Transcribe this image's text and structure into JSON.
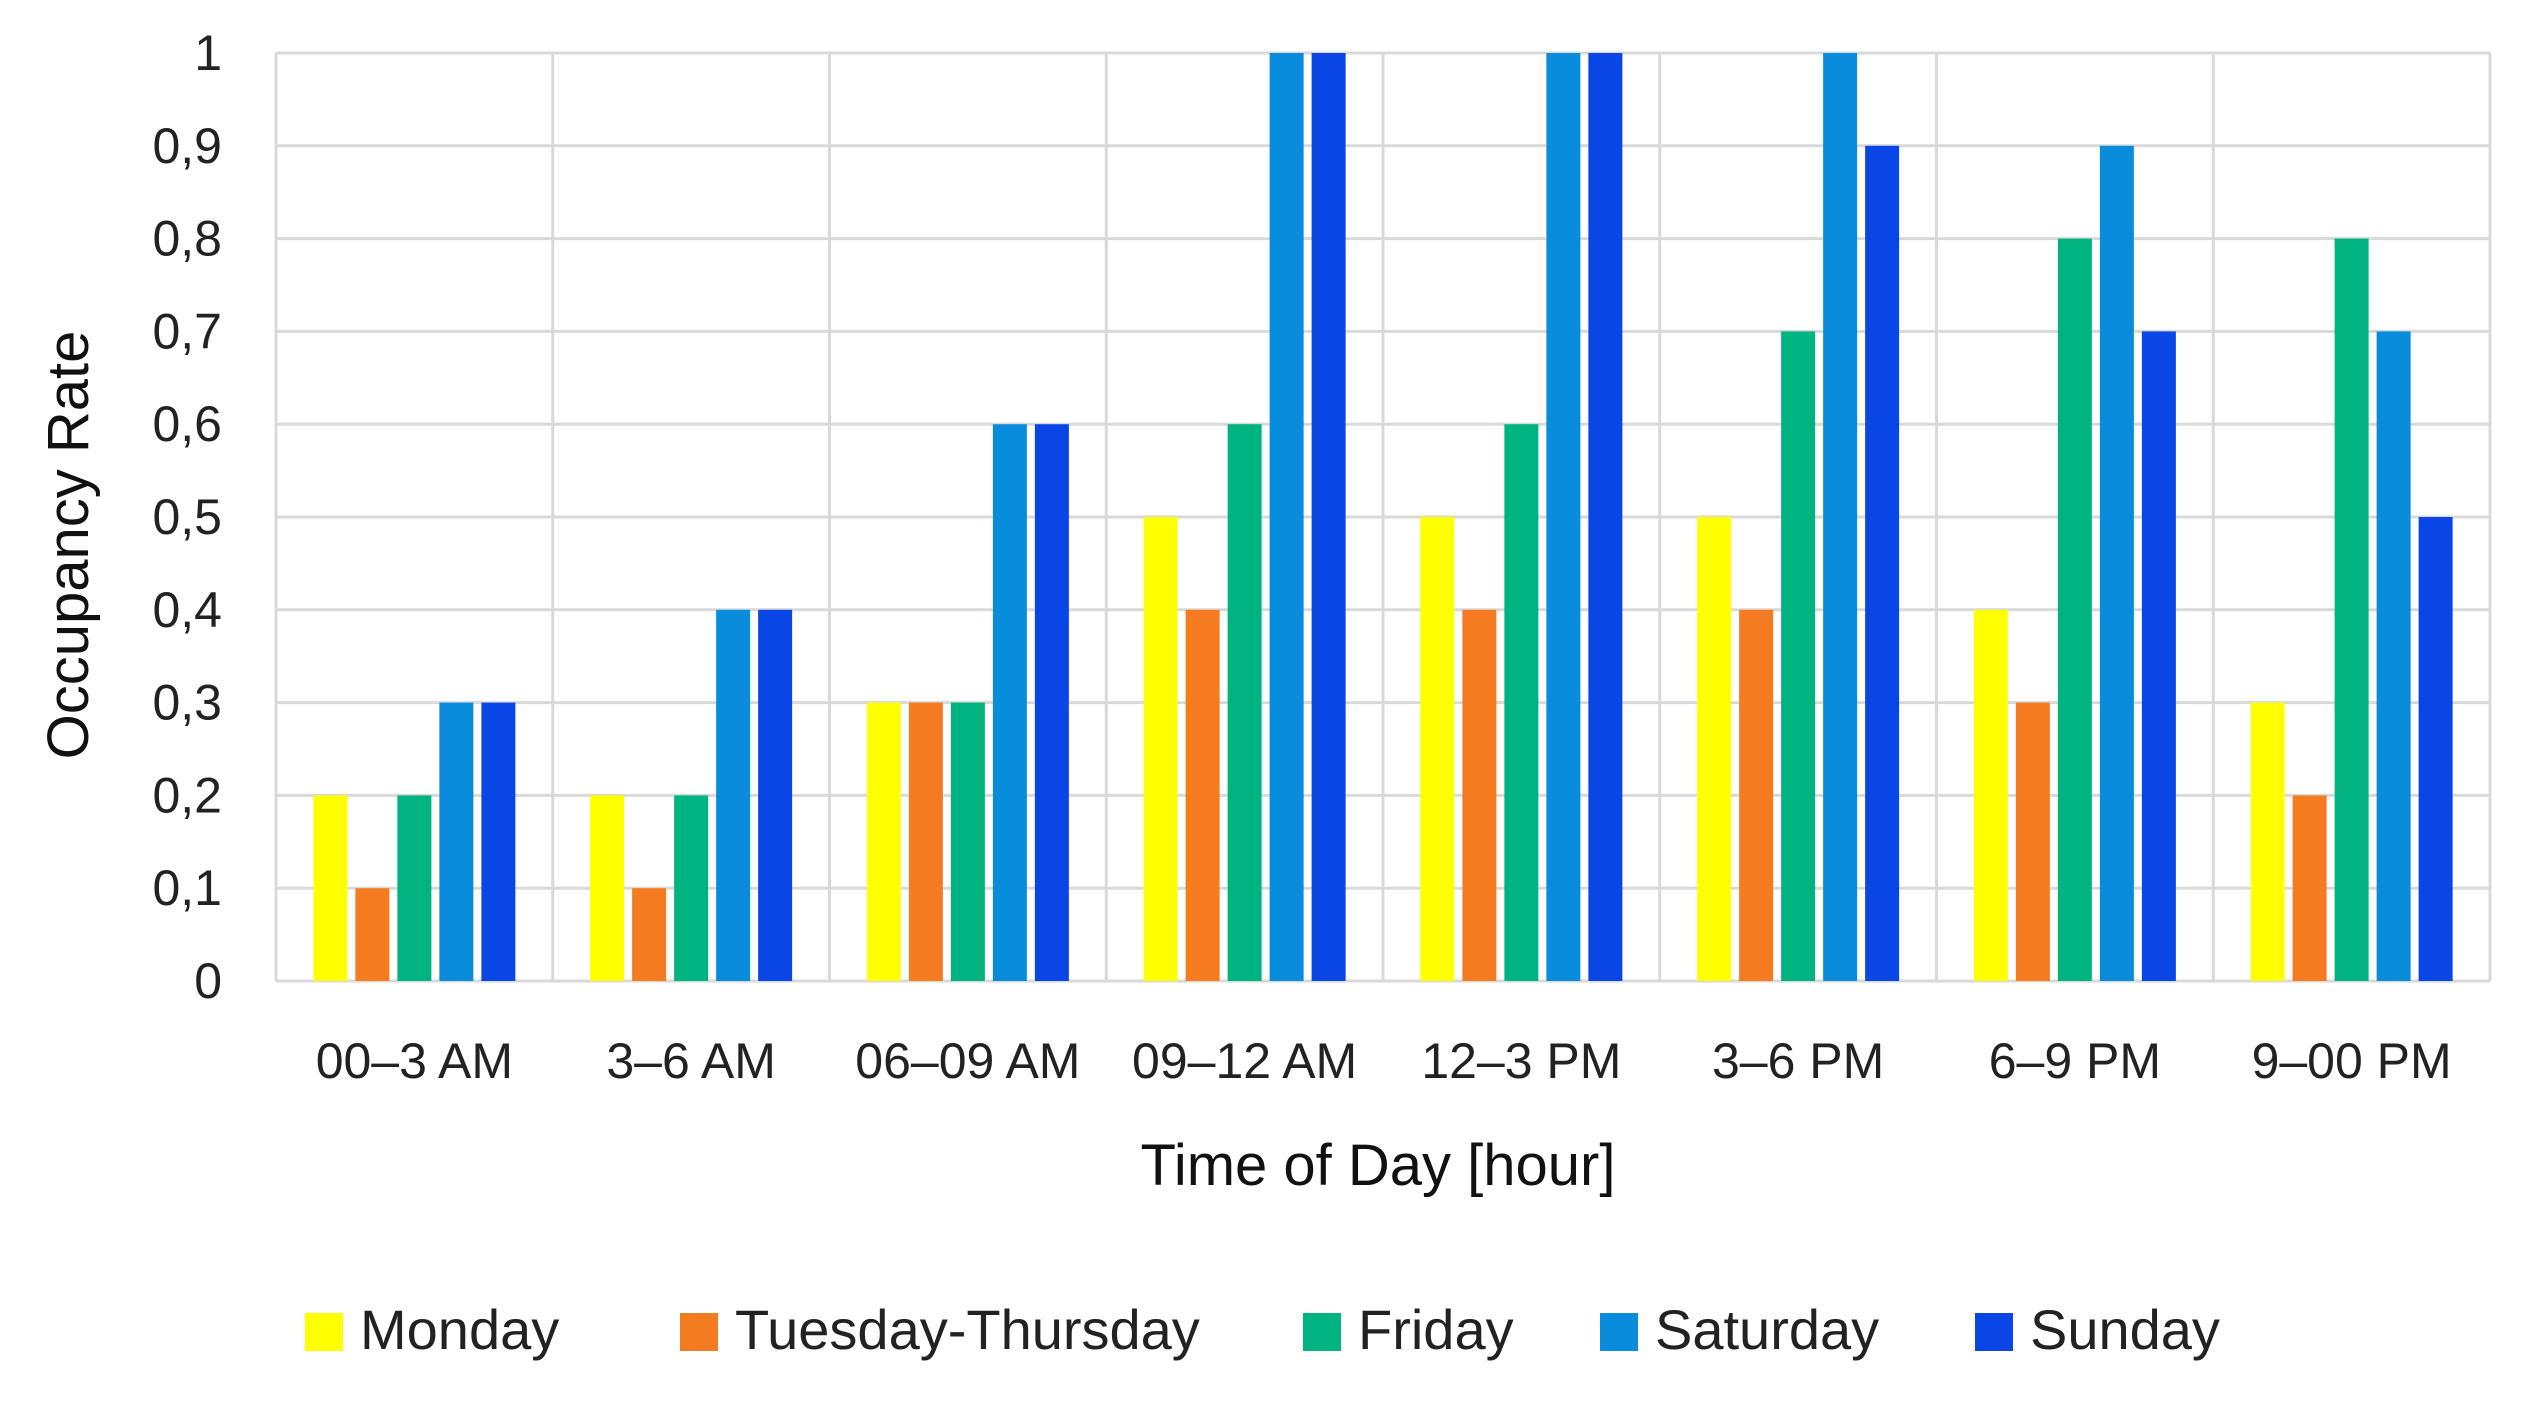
{
  "chart_data": {
    "type": "bar",
    "title": "",
    "xlabel": "Time of Day [hour]",
    "ylabel": "Occupancy Rate",
    "ylim": [
      0,
      1
    ],
    "yticks": [
      "0",
      "0,1",
      "0,2",
      "0,3",
      "0,4",
      "0,5",
      "0,6",
      "0,7",
      "0,8",
      "0,9",
      "1"
    ],
    "grid": true,
    "legend_position": "bottom",
    "categories": [
      "00–3 AM",
      "3–6 AM",
      "06–09 AM",
      "09–12 AM",
      "12–3 PM",
      "3–6 PM",
      "6–9 PM",
      "9–00 PM"
    ],
    "series": [
      {
        "name": "Monday",
        "color": "#FFFF00",
        "values": [
          0.2,
          0.2,
          0.3,
          0.5,
          0.5,
          0.5,
          0.4,
          0.3
        ]
      },
      {
        "name": "Tuesday-Thursday",
        "color": "#F47B20",
        "values": [
          0.1,
          0.1,
          0.3,
          0.4,
          0.4,
          0.4,
          0.3,
          0.2
        ]
      },
      {
        "name": "Friday",
        "color": "#00B482",
        "values": [
          0.2,
          0.2,
          0.3,
          0.6,
          0.6,
          0.7,
          0.8,
          0.8
        ]
      },
      {
        "name": "Saturday",
        "color": "#0A8CDC",
        "values": [
          0.3,
          0.4,
          0.6,
          1.0,
          1.0,
          1.0,
          0.9,
          0.7
        ]
      },
      {
        "name": "Sunday",
        "color": "#0A46E6",
        "values": [
          0.3,
          0.4,
          0.6,
          1.0,
          1.0,
          0.9,
          0.7,
          0.5
        ]
      }
    ]
  }
}
